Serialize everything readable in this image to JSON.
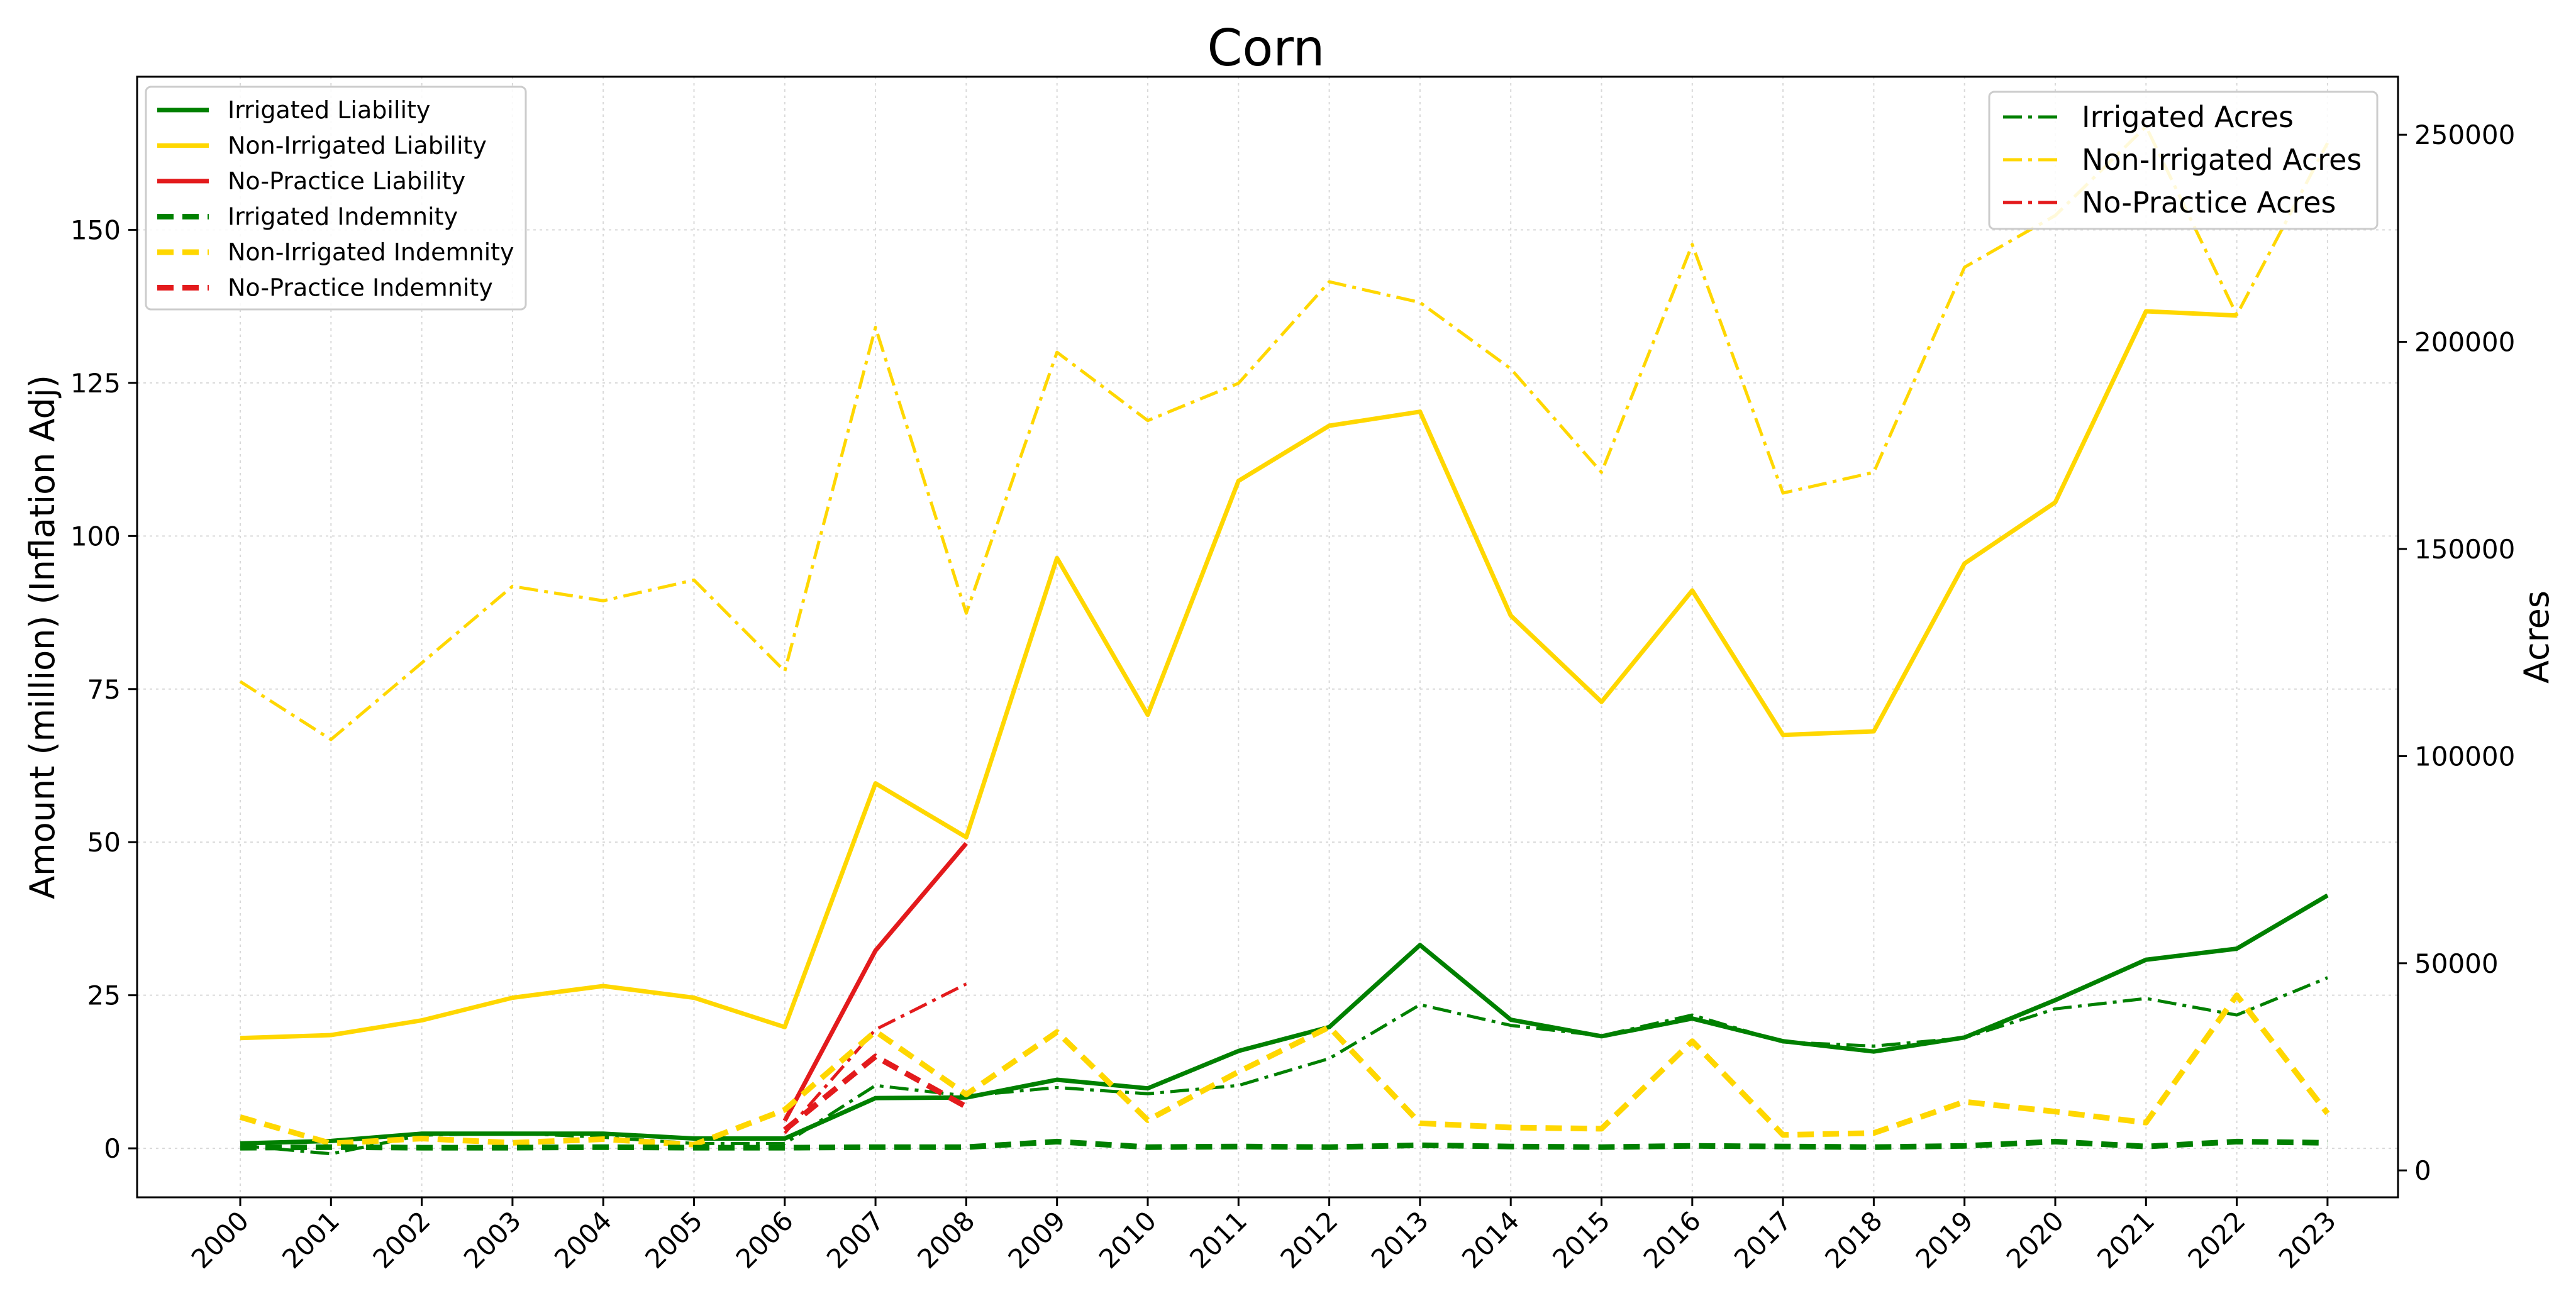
{
  "chart_data": {
    "type": "line",
    "title": "Corn",
    "ylabel": "Amount (million) (Inflation Adj)",
    "y2label": "Acres",
    "ylim": [
      -8,
      175
    ],
    "y2lim": [
      -6500,
      264000
    ],
    "yticks": [
      0,
      25,
      50,
      75,
      100,
      125,
      150
    ],
    "y2ticks": [
      0,
      50000,
      100000,
      150000,
      200000,
      250000
    ],
    "grid": true,
    "legend_left_placement": "upper-left",
    "legend_right_placement": "upper-right",
    "categories": [
      "2000",
      "2001",
      "2002",
      "2003",
      "2004",
      "2005",
      "2006",
      "2007",
      "2008",
      "2009",
      "2010",
      "2011",
      "2012",
      "2013",
      "2014",
      "2015",
      "2016",
      "2017",
      "2018",
      "2019",
      "2020",
      "2021",
      "2022",
      "2023"
    ],
    "series": [
      {
        "name": "Irrigated Liability",
        "axis": "left",
        "style": "solid",
        "color": "#008000",
        "values": [
          0.8,
          1.2,
          2.4,
          2.4,
          2.4,
          1.6,
          1.6,
          8.2,
          8.3,
          11.2,
          9.8,
          15.9,
          19.8,
          33.2,
          21.0,
          18.3,
          21.2,
          17.5,
          15.8,
          18.1,
          24.2,
          30.8,
          32.6,
          41.3
        ]
      },
      {
        "name": "Non-Irrigated Liability",
        "axis": "left",
        "style": "solid",
        "color": "#FFD700",
        "values": [
          18.0,
          18.5,
          20.9,
          24.6,
          26.5,
          24.6,
          19.8,
          59.6,
          50.8,
          96.4,
          70.8,
          109.0,
          118.0,
          120.3,
          87.0,
          72.9,
          91.1,
          67.5,
          68.1,
          95.5,
          105.5,
          136.7,
          136.0,
          null
        ]
      },
      {
        "name": "No-Practice Liability",
        "axis": "left",
        "style": "solid",
        "color": "#E31A1C",
        "values": [
          null,
          null,
          null,
          null,
          null,
          null,
          4.5,
          32.3,
          49.8,
          null,
          null,
          null,
          null,
          null,
          null,
          null,
          null,
          null,
          null,
          null,
          null,
          null,
          null,
          null
        ]
      },
      {
        "name": "Irrigated Indemnity",
        "axis": "left",
        "style": "dashed",
        "color": "#008000",
        "values": [
          0.1,
          0.2,
          0.1,
          0.1,
          0.2,
          0.1,
          0.1,
          0.2,
          0.2,
          1.1,
          0.2,
          0.3,
          0.2,
          0.5,
          0.3,
          0.2,
          0.4,
          0.3,
          0.2,
          0.4,
          1.1,
          0.3,
          1.1,
          0.9
        ]
      },
      {
        "name": "Non-Irrigated Indemnity",
        "axis": "left",
        "style": "dashed",
        "color": "#FFD700",
        "values": [
          5.1,
          0.8,
          1.6,
          0.9,
          1.5,
          0.6,
          6.3,
          19.1,
          8.8,
          19.0,
          4.6,
          12.5,
          19.8,
          4.1,
          3.4,
          3.2,
          17.5,
          2.2,
          2.5,
          7.6,
          6.0,
          4.2,
          25.0,
          5.7
        ]
      },
      {
        "name": "No-Practice Indemnity",
        "axis": "left",
        "style": "dashed",
        "color": "#E31A1C",
        "values": [
          null,
          null,
          null,
          null,
          null,
          null,
          3.0,
          15.0,
          6.8,
          null,
          null,
          null,
          null,
          null,
          null,
          null,
          null,
          null,
          null,
          null,
          null,
          null,
          null,
          null
        ]
      },
      {
        "name": "Irrigated Acres",
        "axis": "right",
        "style": "dashdot",
        "color": "#008000",
        "values": [
          6000,
          4000,
          8500,
          9000,
          8000,
          6500,
          6500,
          20500,
          18000,
          20000,
          18500,
          20500,
          27000,
          40000,
          35000,
          32500,
          37500,
          31000,
          30000,
          32000,
          39000,
          41500,
          37500,
          46500
        ]
      },
      {
        "name": "Non-Irrigated Acres",
        "axis": "right",
        "style": "dashdot",
        "color": "#FFD700",
        "values": [
          118000,
          104000,
          122500,
          141000,
          137500,
          142500,
          120500,
          203500,
          134500,
          197500,
          181000,
          190000,
          214500,
          209500,
          193500,
          168500,
          223500,
          163500,
          168500,
          218000,
          230500,
          252000,
          206500,
          248000
        ]
      },
      {
        "name": "No-Practice Acres",
        "axis": "right",
        "style": "dashdot",
        "color": "#E31A1C",
        "values": [
          null,
          null,
          null,
          null,
          null,
          null,
          9000,
          34000,
          45000,
          null,
          null,
          null,
          null,
          null,
          null,
          null,
          null,
          null,
          null,
          null,
          null,
          null,
          null,
          null
        ]
      }
    ],
    "legend_left": [
      "Irrigated Liability",
      "Non-Irrigated Liability",
      "No-Practice Liability",
      "Irrigated Indemnity",
      "Non-Irrigated Indemnity",
      "No-Practice Indemnity"
    ],
    "legend_right": [
      "Irrigated Acres",
      "Non-Irrigated Acres",
      "No-Practice Acres"
    ]
  }
}
